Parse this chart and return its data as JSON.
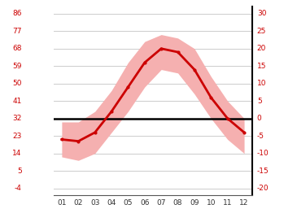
{
  "months": [
    1,
    2,
    3,
    4,
    5,
    6,
    7,
    8,
    9,
    10,
    11,
    12
  ],
  "month_labels": [
    "01",
    "02",
    "03",
    "04",
    "05",
    "06",
    "07",
    "08",
    "09",
    "10",
    "11",
    "12"
  ],
  "mean_temps": [
    -6,
    -6.5,
    -4,
    2,
    9,
    16,
    20,
    19,
    14,
    6,
    0,
    -4
  ],
  "upper_band": [
    -1,
    -1,
    2,
    8,
    16,
    22,
    24,
    23,
    20,
    12,
    5,
    0
  ],
  "lower_band": [
    -11,
    -12,
    -10,
    -4,
    2,
    9,
    14,
    13,
    7,
    0,
    -6,
    -10
  ],
  "y_ticks_c": [
    -20,
    -15,
    -10,
    -5,
    0,
    5,
    10,
    15,
    20,
    25,
    30
  ],
  "y_ticks_f": [
    -4,
    5,
    14,
    23,
    32,
    41,
    50,
    59,
    68,
    77,
    86
  ],
  "ylim": [
    -22,
    32
  ],
  "xlim": [
    0.5,
    12.5
  ],
  "line_color": "#cc0000",
  "band_color": "#f5b0b0",
  "zero_line_color": "#000000",
  "grid_color": "#cccccc",
  "label_color": "#cc0000",
  "background_color": "#ffffff"
}
